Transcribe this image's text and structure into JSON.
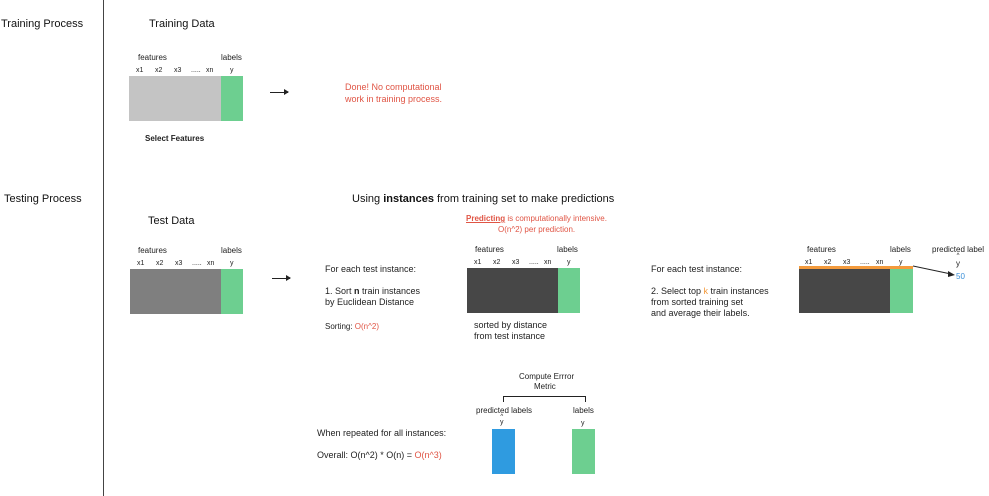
{
  "sections": {
    "training": "Training Process",
    "testing": "Testing Process"
  },
  "training": {
    "title": "Training Data",
    "features": "features",
    "labels": "labels",
    "cols": [
      "x1",
      "x2",
      "x3",
      ".....",
      "xn",
      "y"
    ],
    "select_features": "Select Features",
    "done_line1": "Done! No computational",
    "done_line2": "work in training process."
  },
  "testing": {
    "heading_pre": "Using ",
    "heading_bold": "instances",
    "heading_post": " from training set to make predictions",
    "title": "Test Data",
    "features": "features",
    "labels": "labels",
    "cols": [
      "x1",
      "x2",
      "x3",
      ".....",
      "xn",
      "y"
    ],
    "predicting_bold": "Predicting",
    "predicting_rest": " is computationally intensive.",
    "predicting_line2": "O(n^2) per prediction.",
    "step1_header": "For each test instance:",
    "step1_line1_pre": "1. Sort ",
    "step1_line1_bold": "n",
    "step1_line1_post": " train instances",
    "step1_line2": "by Euclidean Distance",
    "sorting_label": "Sorting: ",
    "sorting_value": "O(n^2)",
    "sorted_line1": "sorted by distance",
    "sorted_line2": "from test instance",
    "step2_header": "For each test instance:",
    "step2_line1_pre": "2. Select top ",
    "step2_line1_k": "k",
    "step2_line1_post": " train instances",
    "step2_line2": "from sorted training set",
    "step2_line3": "and average their labels.",
    "predicted_label": "predicted label",
    "y_hat": "y",
    "predicted_value": "50",
    "compute_line1": "Compute Errror",
    "compute_line2": "Metric",
    "predicted_labels": "predicted labels",
    "labels2": "labels",
    "y2": "y",
    "repeated": "When repeated for all instances:",
    "overall_pre": "Overall: O(n^2) * O(n) = ",
    "overall_value": "O(n^3)"
  },
  "colors": {
    "train_gray": "#c4c4c4",
    "test_gray": "#7f7f7f",
    "dark_gray": "#474747",
    "label_green": "#6dcf90",
    "pred_blue": "#2f9be0",
    "accent_red": "#e05545",
    "orange": "#f39a3c"
  }
}
